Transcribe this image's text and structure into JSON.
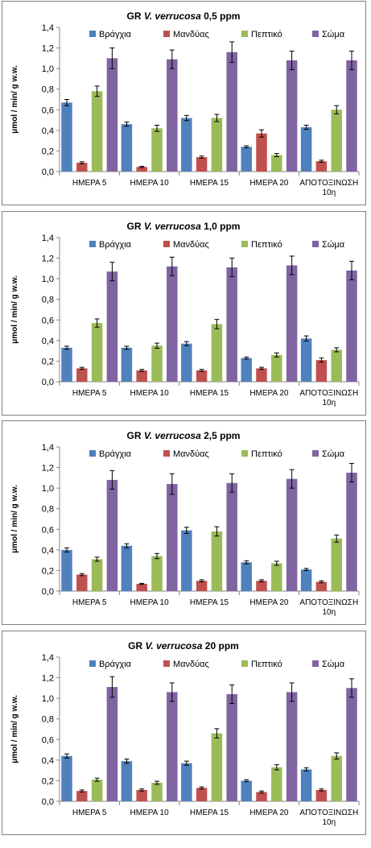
{
  "colors": {
    "branchia": "#4f81bd",
    "mantle": "#c0504d",
    "digestive": "#9bbb59",
    "body": "#8064a2"
  },
  "chart_data": [
    {
      "type": "bar",
      "title_prefix": "GR ",
      "title_species": "V. verrucosa",
      "title_suffix": " 0,5 ppm",
      "ylabel": "μmol / min/ g w.w.",
      "ylim": [
        0,
        1.4
      ],
      "ytick_step": 0.2,
      "yticks": [
        "0,0",
        "0,2",
        "0,4",
        "0,6",
        "0,8",
        "1,0",
        "1,2",
        "1,4"
      ],
      "categories": [
        [
          "ΗΜΕΡΑ 5"
        ],
        [
          "ΗΜΕΡΑ 10"
        ],
        [
          "ΗΜΕΡΑ 15"
        ],
        [
          "ΗΜΕΡΑ 20"
        ],
        [
          "ΑΠΟΤΟΞΙΝΩΣΗ",
          "10η"
        ]
      ],
      "legend_position": "top",
      "grid": false,
      "series": [
        {
          "name": "Βράγχια",
          "values": [
            0.67,
            0.46,
            0.52,
            0.24,
            0.43
          ],
          "errors": [
            0.03,
            0.02,
            0.025,
            0.01,
            0.02
          ]
        },
        {
          "name": "Μανδύας",
          "values": [
            0.085,
            0.045,
            0.14,
            0.37,
            0.1
          ],
          "errors": [
            0.01,
            0.005,
            0.01,
            0.035,
            0.01
          ]
        },
        {
          "name": "Πεπτικό",
          "values": [
            0.78,
            0.42,
            0.52,
            0.16,
            0.6
          ],
          "errors": [
            0.05,
            0.03,
            0.035,
            0.015,
            0.04
          ]
        },
        {
          "name": "Σώμα",
          "values": [
            1.1,
            1.09,
            1.16,
            1.08,
            1.08
          ],
          "errors": [
            0.1,
            0.09,
            0.1,
            0.09,
            0.09
          ]
        }
      ]
    },
    {
      "type": "bar",
      "title_prefix": "GR ",
      "title_species": "V. verrucosa",
      "title_suffix": " 1,0 ppm",
      "ylabel": "μmol / min/ g w.w.",
      "ylim": [
        0,
        1.4
      ],
      "ytick_step": 0.2,
      "yticks": [
        "0,0",
        "0,2",
        "0,4",
        "0,6",
        "0,8",
        "1,0",
        "1,2",
        "1,4"
      ],
      "categories": [
        [
          "ΗΜΕΡΑ 5"
        ],
        [
          "ΗΜΕΡΑ 10"
        ],
        [
          "ΗΜΕΡΑ 15"
        ],
        [
          "ΗΜΕΡΑ 20"
        ],
        [
          "ΑΠΟΤΟΞΙΝΩΣΗ",
          "10η"
        ]
      ],
      "legend_position": "top",
      "grid": false,
      "series": [
        {
          "name": "Βράγχια",
          "values": [
            0.33,
            0.33,
            0.37,
            0.23,
            0.42
          ],
          "errors": [
            0.015,
            0.015,
            0.02,
            0.01,
            0.025
          ]
        },
        {
          "name": "Μανδύας",
          "values": [
            0.13,
            0.11,
            0.11,
            0.13,
            0.21
          ],
          "errors": [
            0.01,
            0.01,
            0.01,
            0.01,
            0.02
          ]
        },
        {
          "name": "Πεπτικό",
          "values": [
            0.57,
            0.35,
            0.56,
            0.26,
            0.31
          ],
          "errors": [
            0.04,
            0.025,
            0.045,
            0.02,
            0.02
          ]
        },
        {
          "name": "Σώμα",
          "values": [
            1.07,
            1.12,
            1.11,
            1.13,
            1.08
          ],
          "errors": [
            0.09,
            0.09,
            0.09,
            0.09,
            0.09
          ]
        }
      ]
    },
    {
      "type": "bar",
      "title_prefix": "GR ",
      "title_species": "V. verrucosa",
      "title_suffix": " 2,5 ppm",
      "ylabel": "μmol / min/ g w.w.",
      "ylim": [
        0,
        1.4
      ],
      "ytick_step": 0.2,
      "yticks": [
        "0,0",
        "0,2",
        "0,4",
        "0,6",
        "0,8",
        "1,0",
        "1,2",
        "1,4"
      ],
      "categories": [
        [
          "ΗΜΕΡΑ 5"
        ],
        [
          "ΗΜΕΡΑ 10"
        ],
        [
          "ΗΜΕΡΑ 15"
        ],
        [
          "ΗΜΕΡΑ 20"
        ],
        [
          "ΑΠΟΤΟΞΙΝΩΣΗ",
          "10η"
        ]
      ],
      "legend_position": "top",
      "grid": false,
      "series": [
        {
          "name": "Βράγχια",
          "values": [
            0.4,
            0.44,
            0.59,
            0.28,
            0.21
          ],
          "errors": [
            0.02,
            0.02,
            0.03,
            0.015,
            0.01
          ]
        },
        {
          "name": "Μανδύας",
          "values": [
            0.16,
            0.07,
            0.1,
            0.1,
            0.09
          ],
          "errors": [
            0.01,
            0.005,
            0.01,
            0.01,
            0.01
          ]
        },
        {
          "name": "Πεπτικό",
          "values": [
            0.31,
            0.34,
            0.58,
            0.27,
            0.51
          ],
          "errors": [
            0.02,
            0.025,
            0.045,
            0.02,
            0.035
          ]
        },
        {
          "name": "Σώμα",
          "values": [
            1.08,
            1.04,
            1.05,
            1.09,
            1.15
          ],
          "errors": [
            0.09,
            0.1,
            0.09,
            0.09,
            0.09
          ]
        }
      ]
    },
    {
      "type": "bar",
      "title_prefix": "GR ",
      "title_species": "V. verrucosa",
      "title_suffix": "  20 ppm",
      "ylabel": "μmol / min/ g w.w.",
      "ylim": [
        0,
        1.4
      ],
      "ytick_step": 0.2,
      "yticks": [
        "0,0",
        "0,2",
        "0,4",
        "0,6",
        "0,8",
        "1,0",
        "1,2",
        "1,4"
      ],
      "categories": [
        [
          "ΗΜΕΡΑ 5"
        ],
        [
          "ΗΜΕΡΑ 10"
        ],
        [
          "ΗΜΕΡΑ 15"
        ],
        [
          "ΗΜΕΡΑ 20"
        ],
        [
          "ΑΠΟΤΟΞΙΝΩΣΗ",
          "10η"
        ]
      ],
      "legend_position": "top",
      "grid": false,
      "series": [
        {
          "name": "Βράγχια",
          "values": [
            0.44,
            0.39,
            0.37,
            0.2,
            0.31
          ],
          "errors": [
            0.02,
            0.02,
            0.02,
            0.01,
            0.015
          ]
        },
        {
          "name": "Μανδύας",
          "values": [
            0.1,
            0.11,
            0.13,
            0.09,
            0.11
          ],
          "errors": [
            0.01,
            0.01,
            0.01,
            0.01,
            0.01
          ]
        },
        {
          "name": "Πεπτικό",
          "values": [
            0.21,
            0.18,
            0.66,
            0.33,
            0.44
          ],
          "errors": [
            0.015,
            0.015,
            0.045,
            0.025,
            0.03
          ]
        },
        {
          "name": "Σώμα",
          "values": [
            1.11,
            1.06,
            1.04,
            1.06,
            1.1
          ],
          "errors": [
            0.1,
            0.09,
            0.09,
            0.09,
            0.09
          ]
        }
      ]
    }
  ]
}
